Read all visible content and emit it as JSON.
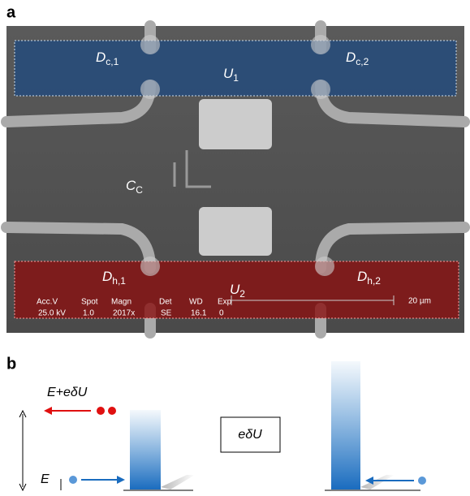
{
  "panel_a": {
    "label": "a",
    "regions": [
      {
        "main": "D",
        "sub": "c,1"
      },
      {
        "main": "U",
        "sub": "1"
      },
      {
        "main": "D",
        "sub": "c,2"
      },
      {
        "main": "C",
        "sub": "C"
      },
      {
        "main": "D",
        "sub": "h,1"
      },
      {
        "main": "U",
        "sub": "2"
      },
      {
        "main": "D",
        "sub": "h,2"
      }
    ],
    "info_bar": [
      {
        "head": "Acc.V",
        "value": "25.0 kV"
      },
      {
        "head": "Spot",
        "value": "1.0"
      },
      {
        "head": "Magn",
        "value": "2017x"
      },
      {
        "head": "Det",
        "value": "SE"
      },
      {
        "head": "WD",
        "value": "16.1"
      },
      {
        "head": "Exp",
        "value": "0"
      }
    ],
    "scale_bar": "20 µm"
  },
  "panel_b": {
    "label": "b",
    "upper_energy": "E+eδU",
    "lower_energy": "E",
    "box": "eδU"
  }
}
